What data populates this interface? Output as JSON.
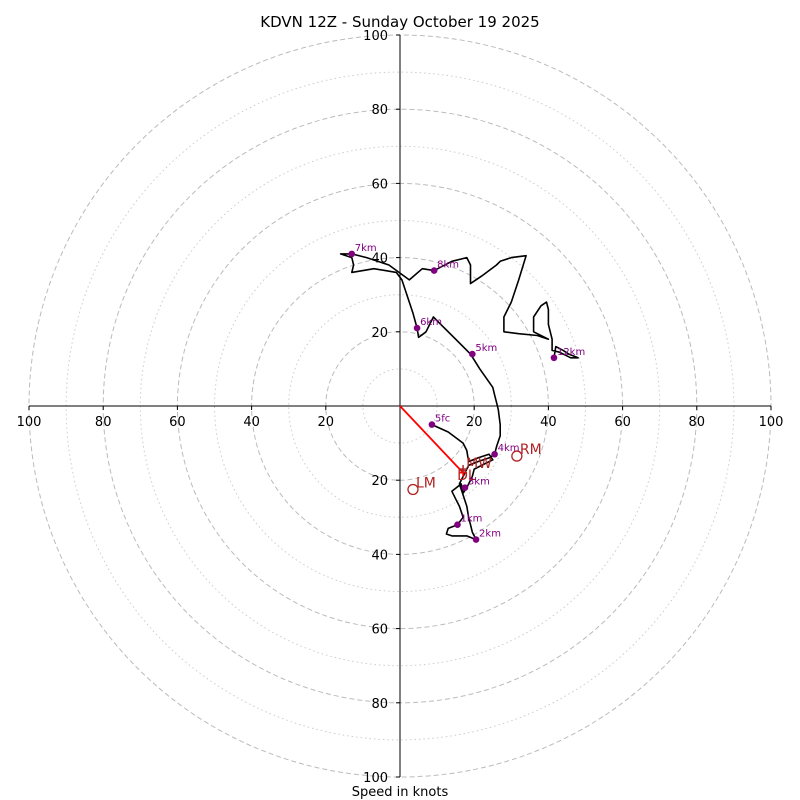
{
  "chart_data": {
    "type": "hodograph",
    "title": "KDVN 12Z - Sunday October 19 2025",
    "xlabel": "Speed in knots",
    "unit": "knots",
    "range": [
      -100,
      100
    ],
    "ring_major_knots": [
      20,
      40,
      60,
      80,
      100
    ],
    "ring_minor_knots": [
      10,
      30,
      50,
      70,
      90
    ],
    "ticks": {
      "x": [
        {
          "value": -100,
          "label": "100"
        },
        {
          "value": -80,
          "label": "80"
        },
        {
          "value": -60,
          "label": "60"
        },
        {
          "value": -40,
          "label": "40"
        },
        {
          "value": -20,
          "label": "20"
        },
        {
          "value": 20,
          "label": "20"
        },
        {
          "value": 40,
          "label": "40"
        },
        {
          "value": 60,
          "label": "60"
        },
        {
          "value": 80,
          "label": "80"
        },
        {
          "value": 100,
          "label": "100"
        }
      ],
      "y": [
        {
          "value": 100,
          "label": "100"
        },
        {
          "value": 80,
          "label": "80"
        },
        {
          "value": 60,
          "label": "60"
        },
        {
          "value": 40,
          "label": "40"
        },
        {
          "value": 20,
          "label": "20"
        },
        {
          "value": -20,
          "label": "20"
        },
        {
          "value": -40,
          "label": "40"
        },
        {
          "value": -60,
          "label": "60"
        },
        {
          "value": -80,
          "label": "80"
        },
        {
          "value": -100,
          "label": "100"
        }
      ]
    },
    "trace_uv": [
      [
        8.6,
        -5
      ],
      [
        13,
        -7
      ],
      [
        17,
        -10
      ],
      [
        18,
        -12
      ],
      [
        18.5,
        -15
      ],
      [
        21,
        -14
      ],
      [
        24,
        -13
      ],
      [
        25,
        -14.5
      ],
      [
        22,
        -16
      ],
      [
        20,
        -17
      ],
      [
        19.5,
        -19
      ],
      [
        18,
        -22
      ],
      [
        17,
        -23.5
      ],
      [
        16.5,
        -21
      ],
      [
        14,
        -23
      ],
      [
        15,
        -25
      ],
      [
        16,
        -27
      ],
      [
        17,
        -30
      ],
      [
        15.5,
        -32
      ],
      [
        13,
        -33
      ],
      [
        12.5,
        -34.5
      ],
      [
        14,
        -35
      ],
      [
        18,
        -35
      ],
      [
        20.5,
        -36
      ],
      [
        19.5,
        -34
      ],
      [
        19,
        -32
      ],
      [
        18.5,
        -30
      ],
      [
        18,
        -27
      ],
      [
        17,
        -24
      ],
      [
        16,
        -21
      ],
      [
        17,
        -19
      ],
      [
        18.5,
        -16
      ],
      [
        21,
        -15
      ],
      [
        24,
        -14
      ],
      [
        25.5,
        -13
      ],
      [
        26,
        -11
      ],
      [
        27,
        -8
      ],
      [
        27,
        -5
      ],
      [
        26.5,
        -1
      ],
      [
        26,
        1
      ],
      [
        25.5,
        3
      ],
      [
        25,
        5
      ],
      [
        21.5,
        10
      ],
      [
        19,
        14
      ],
      [
        16,
        17
      ],
      [
        11,
        22
      ],
      [
        9,
        24
      ],
      [
        8,
        22
      ],
      [
        7,
        20
      ],
      [
        5,
        18.5
      ],
      [
        4.6,
        21
      ],
      [
        3.5,
        25
      ],
      [
        2.5,
        28
      ],
      [
        1.5,
        31
      ],
      [
        0.5,
        34
      ],
      [
        -1,
        36
      ],
      [
        -7,
        37
      ],
      [
        -13,
        36
      ],
      [
        -12.5,
        38
      ],
      [
        -13,
        40
      ],
      [
        -16,
        41
      ],
      [
        -13,
        41
      ],
      [
        -9,
        40
      ],
      [
        -3,
        38
      ],
      [
        2.5,
        34
      ],
      [
        6,
        37
      ],
      [
        9.2,
        36.5
      ],
      [
        14,
        39
      ],
      [
        18,
        40
      ],
      [
        19,
        38
      ],
      [
        19,
        33
      ],
      [
        22,
        35
      ],
      [
        26,
        38
      ],
      [
        27,
        39
      ],
      [
        30,
        40
      ],
      [
        34,
        40.5
      ],
      [
        32,
        34
      ],
      [
        30,
        28
      ],
      [
        28,
        24
      ],
      [
        28,
        20
      ],
      [
        32,
        19.5
      ],
      [
        37,
        19
      ],
      [
        40,
        18
      ],
      [
        36,
        20
      ],
      [
        36,
        24
      ],
      [
        38,
        27
      ],
      [
        39.5,
        28
      ],
      [
        40,
        26
      ],
      [
        40,
        22
      ],
      [
        41,
        18
      ],
      [
        41,
        15
      ],
      [
        43,
        14.5
      ],
      [
        46,
        13
      ],
      [
        48,
        13
      ],
      [
        45.5,
        14
      ],
      [
        44,
        15
      ],
      [
        42,
        16
      ],
      [
        41.5,
        13
      ]
    ],
    "height_markers": [
      {
        "label": "5fc",
        "u": 8.6,
        "v": -5
      },
      {
        "label": "1km",
        "u": 15.5,
        "v": -32
      },
      {
        "label": "2km",
        "u": 20.5,
        "v": -36
      },
      {
        "label": "3km",
        "u": 17.5,
        "v": -22
      },
      {
        "label": "4km",
        "u": 25.5,
        "v": -13
      },
      {
        "label": "5km",
        "u": 19.5,
        "v": 14
      },
      {
        "label": "6km",
        "u": 4.6,
        "v": 21
      },
      {
        "label": "7km",
        "u": -13,
        "v": 41
      },
      {
        "label": "8km",
        "u": 9.2,
        "v": 36.5
      },
      {
        "label": "12km",
        "u": 41.5,
        "v": 13
      }
    ],
    "motion_vectors": {
      "mean_wind": {
        "label": "MW",
        "u": 17,
        "v": -17
      },
      "right_mover": {
        "label": "RM",
        "u": 31.5,
        "v": -13.5
      },
      "left_mover": {
        "label": "LM",
        "u": 3.5,
        "v": -22.5
      },
      "storm_motion_label": "DL",
      "storm_motion": {
        "u": 17,
        "v": -18
      }
    },
    "colors": {
      "trace": "#000000",
      "height_marker": "#800080",
      "motion": "#b22222",
      "shear_vector": "#ff0000",
      "grid": "#bbbbbb",
      "axis": "#000000"
    }
  }
}
